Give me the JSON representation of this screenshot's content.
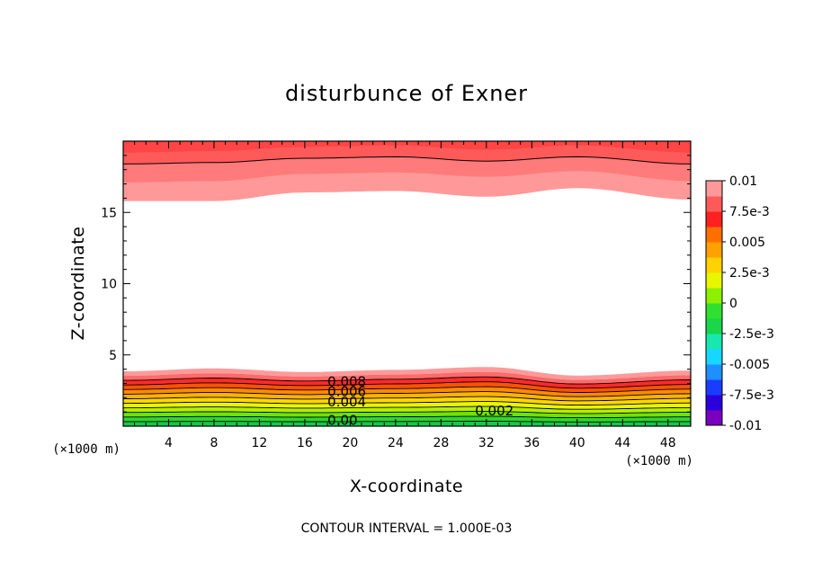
{
  "chart_data": {
    "type": "contour",
    "title": "disturbunce of Exner",
    "xlabel": "X-coordinate",
    "ylabel": "Z-coordinate",
    "x_unit": "(×1000 m)",
    "y_unit": "(×1000 m)",
    "xlim": [
      0,
      50
    ],
    "ylim": [
      0,
      20
    ],
    "x_ticks": [
      4,
      8,
      12,
      16,
      20,
      24,
      28,
      32,
      36,
      40,
      44,
      48
    ],
    "y_ticks": [
      5,
      10,
      15
    ],
    "contour_interval_text": "CONTOUR INTERVAL = 1.000E-03",
    "colorbar": {
      "min": -0.01,
      "max": 0.01,
      "tick_labels": [
        "0.01",
        "7.5e-3",
        "0.005",
        "2.5e-3",
        "0",
        "-2.5e-3",
        "-0.005",
        "-7.5e-3",
        "-0.01"
      ],
      "tick_values": [
        0.01,
        0.0075,
        0.005,
        0.0025,
        0,
        -0.0025,
        -0.005,
        -0.0075,
        -0.01
      ],
      "colors": [
        "#7a00c0",
        "#2a00dd",
        "#1a3cff",
        "#1f8fff",
        "#17d6ff",
        "#18e8b0",
        "#19d64a",
        "#2fe02f",
        "#8cf000",
        "#e6f700",
        "#ffd200",
        "#ffa100",
        "#ff6f00",
        "#ff2020",
        "#ff5a5a",
        "#ff9999"
      ]
    },
    "contour_labels": [
      {
        "text": "0.008",
        "x": 18,
        "z": 2.8
      },
      {
        "text": "0.006",
        "x": 18,
        "z": 2.1
      },
      {
        "text": "0.004",
        "x": 18,
        "z": 1.4
      },
      {
        "text": "0.002",
        "x": 31,
        "z": 0.75
      },
      {
        "text": "0.00",
        "x": 18,
        "z": 0.1
      }
    ],
    "fields": {
      "upper_outer_top_z": [
        15.8,
        15.8,
        16.4,
        16.5,
        16.1,
        16.7,
        15.9
      ],
      "upper_band_top_z": [
        17.1,
        17.2,
        17.7,
        17.8,
        17.5,
        17.9,
        17.2
      ],
      "upper_red_top_z": [
        18.4,
        18.5,
        18.8,
        18.9,
        18.6,
        18.9,
        18.4
      ],
      "lower_top_z": [
        3.85,
        4.05,
        3.8,
        3.95,
        4.15,
        3.55,
        3.9
      ],
      "sample_x": [
        0,
        8,
        16,
        24,
        32,
        40,
        50
      ]
    }
  }
}
